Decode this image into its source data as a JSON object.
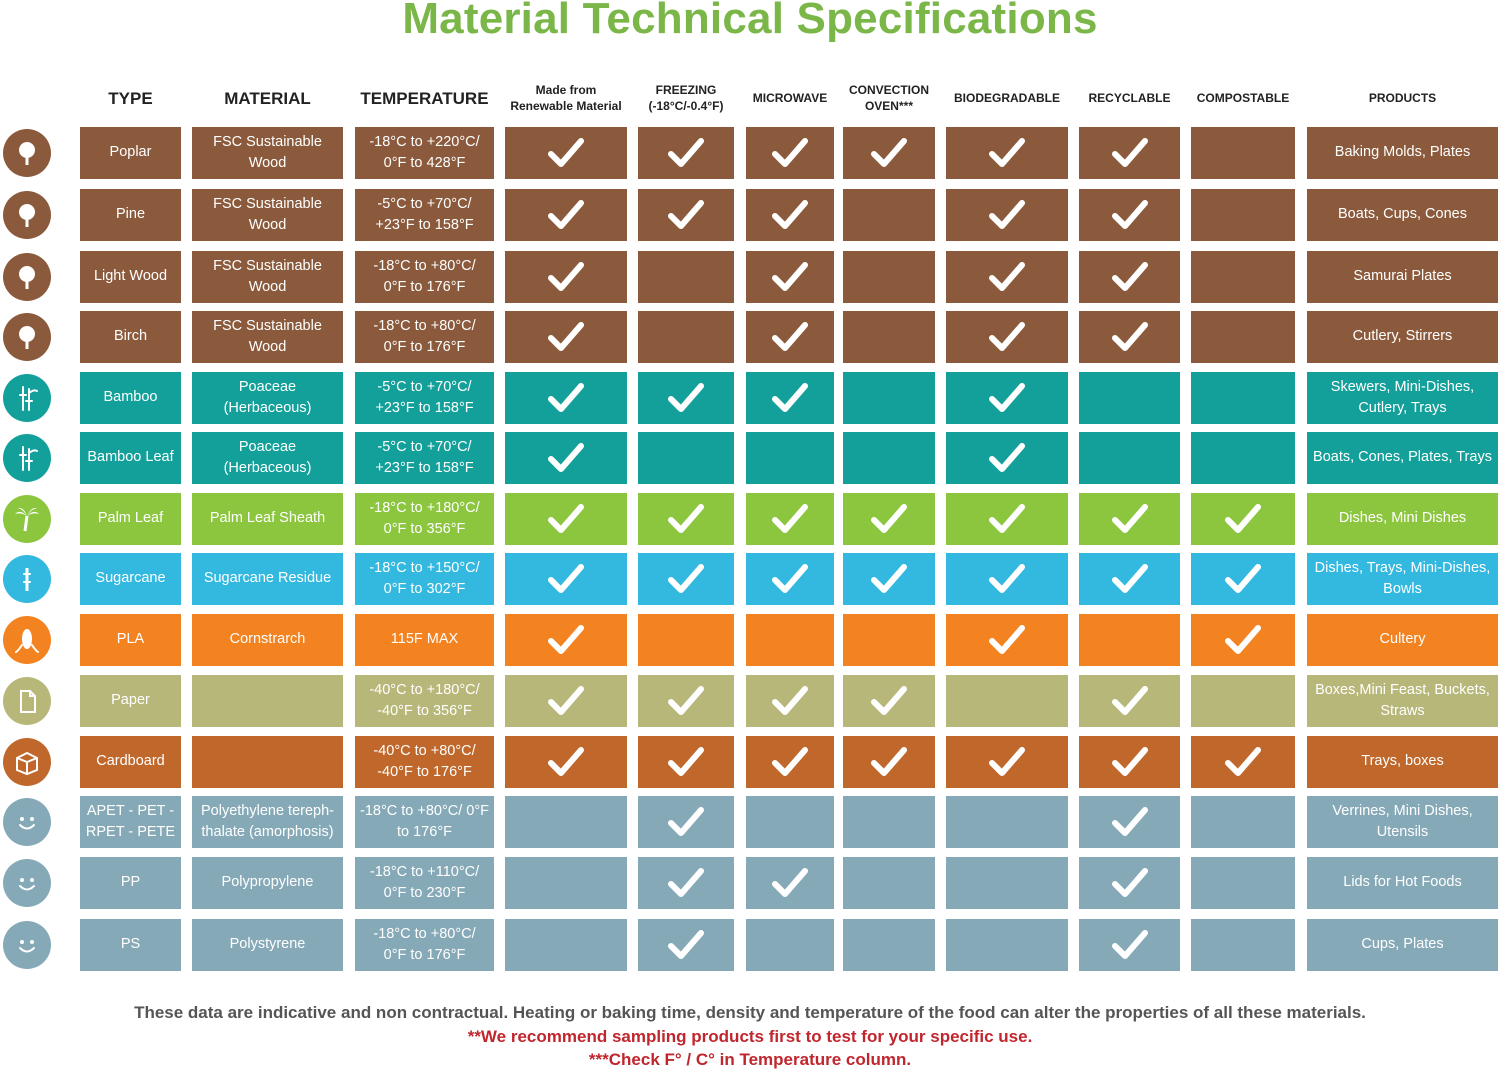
{
  "title": "Material Technical Specifications",
  "headers": [
    "TYPE",
    "MATERIAL",
    "TEMPERATURE",
    "Made from\nRenewable Material",
    "FREEZING\n(-18°C/-0.4°F)",
    "MICROWAVE",
    "CONVECTION\nOVEN***",
    "BIODEGRADABLE",
    "RECYCLABLE",
    "COMPOSTABLE",
    "PRODUCTS"
  ],
  "colors": {
    "wood": "#8b5a3c",
    "bamboo": "#14a09a",
    "palm": "#8cc63f",
    "sugarcane": "#33b8e0",
    "pla": "#f38220",
    "paper": "#b8b77a",
    "cardboard": "#c0682c",
    "plastic": "#86a9b8"
  },
  "rows": [
    {
      "icon": "wood-tree-icon",
      "icon_label": "WOOD",
      "color": "#8b5a3c",
      "type": "Poplar",
      "material": "FSC Sustainable Wood",
      "temperature": "-18°C to +220°C/\n0°F to 428°F",
      "checks": [
        true,
        true,
        true,
        true,
        true,
        true,
        false
      ],
      "products": "Baking Molds, Plates"
    },
    {
      "icon": "wood-tree-icon",
      "icon_label": "WOOD",
      "color": "#8b5a3c",
      "type": "Pine",
      "material": "FSC Sustainable Wood",
      "temperature": "-5°C to +70°C/\n+23°F to 158°F",
      "checks": [
        true,
        true,
        true,
        false,
        true,
        true,
        false
      ],
      "products": "Boats, Cups, Cones"
    },
    {
      "icon": "wood-tree-icon",
      "icon_label": "WOOD",
      "color": "#8b5a3c",
      "type": "Light Wood",
      "material": "FSC Sustainable Wood",
      "temperature": "-18°C to +80°C/\n0°F to 176°F",
      "checks": [
        true,
        false,
        true,
        false,
        true,
        true,
        false
      ],
      "products": "Samurai Plates"
    },
    {
      "icon": "wood-tree-icon",
      "icon_label": "WOOD",
      "color": "#8b5a3c",
      "type": "Birch",
      "material": "FSC Sustainable Wood",
      "temperature": "-18°C to +80°C/\n0°F to 176°F",
      "checks": [
        true,
        false,
        true,
        false,
        true,
        true,
        false
      ],
      "products": "Cutlery, Stirrers"
    },
    {
      "icon": "bamboo-icon",
      "icon_label": "BAMBOO",
      "color": "#14a09a",
      "type": "Bamboo",
      "material": "Poaceae (Herbaceous)",
      "temperature": "-5°C to +70°C/\n+23°F to 158°F",
      "checks": [
        true,
        true,
        true,
        false,
        true,
        false,
        false
      ],
      "products": "Skewers, Mini-Dishes,\nCutlery, Trays"
    },
    {
      "icon": "bamboo-icon",
      "icon_label": "BAMBOO",
      "color": "#14a09a",
      "type": "Bamboo Leaf",
      "material": "Poaceae (Herbaceous)",
      "temperature": "-5°C to +70°C/\n+23°F to 158°F",
      "checks": [
        true,
        false,
        false,
        false,
        true,
        false,
        false
      ],
      "products": "Boats, Cones, Plates, Trays"
    },
    {
      "icon": "palm-tree-icon",
      "icon_label": "PALM",
      "color": "#8cc63f",
      "type": "Palm Leaf",
      "material": "Palm Leaf Sheath",
      "temperature": "-18°C to +180°C/\n0°F to 356°F",
      "checks": [
        true,
        true,
        true,
        true,
        true,
        true,
        true
      ],
      "products": "Dishes, Mini Dishes"
    },
    {
      "icon": "sugarcane-icon",
      "icon_label": "SUGARCANE",
      "color": "#33b8e0",
      "type": "Sugarcane",
      "material": "Sugarcane Residue",
      "temperature": "-18°C to +150°C/\n0°F to 302°F",
      "checks": [
        true,
        true,
        true,
        true,
        true,
        true,
        true
      ],
      "products": "Dishes, Trays, Mini-Dishes,\nBowls"
    },
    {
      "icon": "cornstarch-icon",
      "icon_label": "CORNSTARCH",
      "color": "#f38220",
      "type": "PLA",
      "material": "Cornstrarch",
      "temperature": "115F MAX",
      "checks": [
        true,
        false,
        false,
        false,
        true,
        false,
        true
      ],
      "products": "Cultery"
    },
    {
      "icon": "paper-icon",
      "icon_label": "PAPER",
      "color": "#b8b77a",
      "type": "Paper",
      "material": "",
      "temperature": "-40°C to +180°C/\n-40°F to 356°F",
      "checks": [
        true,
        true,
        true,
        true,
        false,
        true,
        false
      ],
      "products": "Boxes,Mini Feast, Buckets,\nStraws"
    },
    {
      "icon": "cardboard-box-icon",
      "icon_label": "CARDBOARD",
      "color": "#c0682c",
      "type": "Cardboard",
      "material": "",
      "temperature": "-40°C to +80°C/\n-40°F to 176°F",
      "checks": [
        true,
        true,
        true,
        true,
        true,
        true,
        true
      ],
      "products": "Trays, boxes"
    },
    {
      "icon": "eco-plastic-smiley-icon",
      "icon_label": "ECO-FRIENDLY PLASTIC",
      "color": "#86a9b8",
      "type": "APET - PET -\nRPET - PETE",
      "material": "Polyethylene tereph-\nthalate (amorphosis)",
      "temperature": "-18°C to +80°C/ 0°F\nto 176°F",
      "checks": [
        false,
        true,
        false,
        false,
        false,
        true,
        false
      ],
      "products": "Verrines, Mini Dishes, Utensils"
    },
    {
      "icon": "eco-plastic-smiley-icon",
      "icon_label": "ECO-FRIENDLY PLASTIC",
      "color": "#86a9b8",
      "type": "PP",
      "material": "Polypropylene",
      "temperature": "-18°C to +110°C/\n0°F to 230°F",
      "checks": [
        false,
        true,
        true,
        false,
        false,
        true,
        false
      ],
      "products": "Lids for Hot Foods"
    },
    {
      "icon": "eco-plastic-smiley-icon",
      "icon_label": "ECO-FRIENDLY PLASTIC",
      "color": "#86a9b8",
      "type": "PS",
      "material": "Polystyrene",
      "temperature": "-18°C to +80°C/\n0°F to 176°F",
      "checks": [
        false,
        true,
        false,
        false,
        false,
        true,
        false
      ],
      "products": "Cups, Plates"
    }
  ],
  "footer": {
    "line1": "These data are indicative and non contractual. Heating or baking time, density and temperature of the food can alter the properties of all these materials.",
    "line2": "**We recommend sampling products first to test for your specific use.",
    "line3": "***Check F° / C°  in Temperature column."
  }
}
